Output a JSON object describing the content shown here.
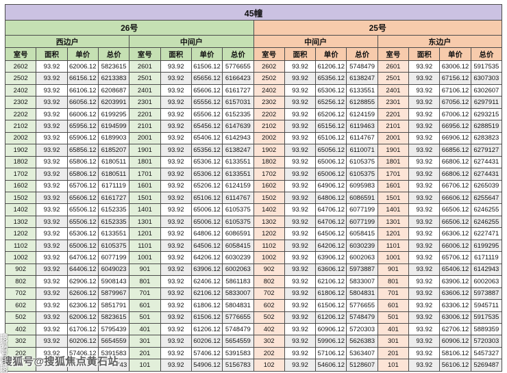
{
  "title": "45幢",
  "columns": [
    "室号",
    "面积",
    "单价",
    "总价"
  ],
  "buildings": [
    {
      "label": "26号",
      "theme": "green"
    },
    {
      "label": "25号",
      "theme": "orange"
    }
  ],
  "colors": {
    "banner_bg": "#cbc2e2",
    "green_header_bg": "#c5e0b3",
    "green_room_bg": "#e2efda",
    "orange_header_bg": "#f7cbac",
    "orange_room_bg": "#fce4d6",
    "alt_row_bg": "#ededed",
    "border": "#4a4a4a"
  },
  "watermark": {
    "text": "搜狐号@搜狐焦点黄石站",
    "side_text": "搜狐号@搜狐焦点黄石站"
  },
  "sections": [
    {
      "building": "26号",
      "unit_type": "西边户",
      "theme": "green",
      "rows": [
        [
          "2602",
          "93.92",
          "62006.12",
          "5823615"
        ],
        [
          "2502",
          "93.92",
          "66156.12",
          "6213383"
        ],
        [
          "2402",
          "93.92",
          "66106.12",
          "6208687"
        ],
        [
          "2302",
          "93.92",
          "66056.12",
          "6203991"
        ],
        [
          "2202",
          "93.92",
          "66006.12",
          "6199295"
        ],
        [
          "2102",
          "93.92",
          "65956.12",
          "6194599"
        ],
        [
          "2002",
          "93.92",
          "65906.12",
          "6189903"
        ],
        [
          "1902",
          "93.92",
          "65856.12",
          "6185207"
        ],
        [
          "1802",
          "93.92",
          "65806.12",
          "6180511"
        ],
        [
          "1702",
          "93.92",
          "65806.12",
          "6180511"
        ],
        [
          "1602",
          "93.92",
          "65706.12",
          "6171119"
        ],
        [
          "1502",
          "93.92",
          "65606.12",
          "6161727"
        ],
        [
          "1402",
          "93.92",
          "65506.12",
          "6152335"
        ],
        [
          "1302",
          "93.92",
          "65506.12",
          "6152335"
        ],
        [
          "1202",
          "93.92",
          "65306.12",
          "6133551"
        ],
        [
          "1102",
          "93.92",
          "65006.12",
          "6105375"
        ],
        [
          "1002",
          "93.92",
          "64706.12",
          "6077199"
        ],
        [
          "902",
          "93.92",
          "64406.12",
          "6049023"
        ],
        [
          "802",
          "93.92",
          "62906.12",
          "5908143"
        ],
        [
          "702",
          "93.92",
          "62606.12",
          "5879967"
        ],
        [
          "602",
          "93.92",
          "62306.12",
          "5851791"
        ],
        [
          "502",
          "93.92",
          "62006.12",
          "5823615"
        ],
        [
          "402",
          "93.92",
          "61706.12",
          "5795439"
        ],
        [
          "302",
          "93.92",
          "60206.12",
          "5654559"
        ],
        [
          "202",
          "93.92",
          "57406.12",
          "5391583"
        ],
        [
          "",
          "",
          "",
          "743"
        ]
      ]
    },
    {
      "building": "26号",
      "unit_type": "中间户",
      "theme": "green",
      "rows": [
        [
          "2601",
          "93.92",
          "61506.12",
          "5776655"
        ],
        [
          "2501",
          "93.92",
          "65656.12",
          "6166423"
        ],
        [
          "2401",
          "93.92",
          "65606.12",
          "6161727"
        ],
        [
          "2301",
          "93.92",
          "65556.12",
          "6157031"
        ],
        [
          "2201",
          "93.92",
          "65506.12",
          "6152335"
        ],
        [
          "2101",
          "93.92",
          "65456.12",
          "6147639"
        ],
        [
          "2001",
          "93.92",
          "65406.12",
          "6142943"
        ],
        [
          "1901",
          "93.92",
          "65356.12",
          "6138247"
        ],
        [
          "1801",
          "93.92",
          "65306.12",
          "6133551"
        ],
        [
          "1701",
          "93.92",
          "65306.12",
          "6133551"
        ],
        [
          "1601",
          "93.92",
          "65206.12",
          "6124159"
        ],
        [
          "1501",
          "93.92",
          "65106.12",
          "6114767"
        ],
        [
          "1401",
          "93.92",
          "65006.12",
          "6105375"
        ],
        [
          "1301",
          "93.92",
          "65006.12",
          "6105375"
        ],
        [
          "1201",
          "93.92",
          "64806.12",
          "6086591"
        ],
        [
          "1101",
          "93.92",
          "64506.12",
          "6058415"
        ],
        [
          "1001",
          "93.92",
          "64206.12",
          "6030239"
        ],
        [
          "901",
          "93.92",
          "63906.12",
          "6002063"
        ],
        [
          "801",
          "93.92",
          "62406.12",
          "5861183"
        ],
        [
          "701",
          "93.92",
          "62106.12",
          "5833007"
        ],
        [
          "601",
          "93.92",
          "61806.12",
          "5804831"
        ],
        [
          "501",
          "93.92",
          "61506.12",
          "5776655"
        ],
        [
          "401",
          "93.92",
          "61206.12",
          "5748479"
        ],
        [
          "301",
          "93.92",
          "60206.12",
          "5654559"
        ],
        [
          "201",
          "93.92",
          "57406.12",
          "5391583"
        ],
        [
          "101",
          "93.92",
          "54906.12",
          "5156783"
        ]
      ]
    },
    {
      "building": "25号",
      "unit_type": "中间户",
      "theme": "orange",
      "rows": [
        [
          "2602",
          "93.92",
          "61206.12",
          "5748479"
        ],
        [
          "2502",
          "93.92",
          "65356.12",
          "6138247"
        ],
        [
          "2402",
          "93.92",
          "65306.12",
          "6133551"
        ],
        [
          "2302",
          "93.92",
          "65256.12",
          "6128855"
        ],
        [
          "2202",
          "93.92",
          "65206.12",
          "6124159"
        ],
        [
          "2102",
          "93.92",
          "65156.12",
          "6119463"
        ],
        [
          "2002",
          "93.92",
          "65106.12",
          "6114767"
        ],
        [
          "1902",
          "93.92",
          "65056.12",
          "6110071"
        ],
        [
          "1802",
          "93.92",
          "65006.12",
          "6105375"
        ],
        [
          "1702",
          "93.92",
          "65006.12",
          "6105375"
        ],
        [
          "1602",
          "93.92",
          "64906.12",
          "6095983"
        ],
        [
          "1502",
          "93.92",
          "64806.12",
          "6086591"
        ],
        [
          "1402",
          "93.92",
          "64706.12",
          "6077199"
        ],
        [
          "1302",
          "93.92",
          "64706.12",
          "6077199"
        ],
        [
          "1202",
          "93.92",
          "64506.12",
          "6058415"
        ],
        [
          "1102",
          "93.92",
          "64206.12",
          "6030239"
        ],
        [
          "1002",
          "93.92",
          "63906.12",
          "6002063"
        ],
        [
          "902",
          "93.92",
          "63606.12",
          "5973887"
        ],
        [
          "802",
          "93.92",
          "62106.12",
          "5833007"
        ],
        [
          "702",
          "93.92",
          "61806.12",
          "5804831"
        ],
        [
          "602",
          "93.92",
          "61506.12",
          "5776655"
        ],
        [
          "502",
          "93.92",
          "61206.12",
          "5748479"
        ],
        [
          "402",
          "93.92",
          "60906.12",
          "5720303"
        ],
        [
          "302",
          "93.92",
          "59906.12",
          "5626383"
        ],
        [
          "202",
          "93.92",
          "57106.12",
          "5363407"
        ],
        [
          "102",
          "93.92",
          "54606.12",
          "5128607"
        ]
      ]
    },
    {
      "building": "25号",
      "unit_type": "东边户",
      "theme": "orange",
      "rows": [
        [
          "2601",
          "93.92",
          "63006.12",
          "5917535"
        ],
        [
          "2501",
          "93.92",
          "67156.12",
          "6307303"
        ],
        [
          "2401",
          "93.92",
          "67106.12",
          "6302607"
        ],
        [
          "2301",
          "93.92",
          "67056.12",
          "6297911"
        ],
        [
          "2201",
          "93.92",
          "67006.12",
          "6293215"
        ],
        [
          "2101",
          "93.92",
          "66956.12",
          "6288519"
        ],
        [
          "2001",
          "93.92",
          "66906.12",
          "6283823"
        ],
        [
          "1901",
          "93.92",
          "66856.12",
          "6279127"
        ],
        [
          "1801",
          "93.92",
          "66806.12",
          "6274431"
        ],
        [
          "1701",
          "93.92",
          "66806.12",
          "6274431"
        ],
        [
          "1601",
          "93.92",
          "66706.12",
          "6265039"
        ],
        [
          "1501",
          "93.92",
          "66606.12",
          "6255647"
        ],
        [
          "1401",
          "93.92",
          "66506.12",
          "6246255"
        ],
        [
          "1301",
          "93.92",
          "66506.12",
          "6246255"
        ],
        [
          "1201",
          "93.92",
          "66306.12",
          "6227471"
        ],
        [
          "1101",
          "93.92",
          "66006.12",
          "6199295"
        ],
        [
          "1001",
          "93.92",
          "65706.12",
          "6171119"
        ],
        [
          "901",
          "93.92",
          "65406.12",
          "6142943"
        ],
        [
          "801",
          "93.92",
          "63906.12",
          "6002063"
        ],
        [
          "701",
          "93.92",
          "63606.12",
          "5973887"
        ],
        [
          "601",
          "93.92",
          "63306.12",
          "5945711"
        ],
        [
          "501",
          "93.92",
          "63006.12",
          "5917535"
        ],
        [
          "401",
          "93.92",
          "62706.12",
          "5889359"
        ],
        [
          "301",
          "93.92",
          "60906.12",
          "5720303"
        ],
        [
          "201",
          "93.92",
          "58106.12",
          "5457327"
        ],
        [
          "101",
          "93.92",
          "56106.12",
          "5269487"
        ]
      ]
    }
  ]
}
